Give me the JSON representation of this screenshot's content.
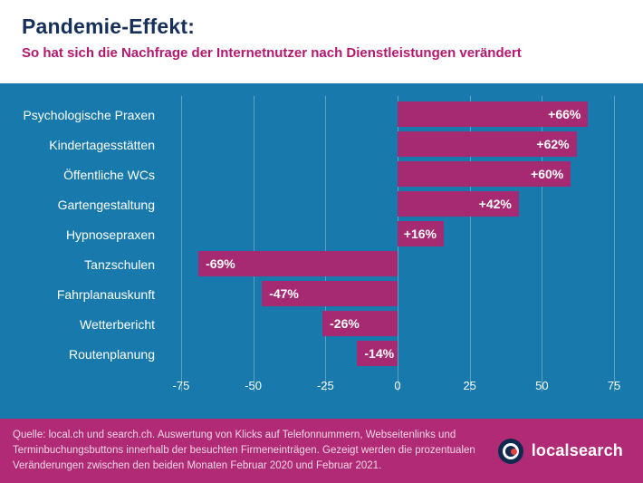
{
  "header": {
    "title": "Pandemie-Effekt:",
    "subtitle": "So hat sich die Nachfrage der Internetnutzer nach Dienstleistungen verändert"
  },
  "chart_data": {
    "type": "bar",
    "orientation": "horizontal",
    "categories": [
      "Psychologische Praxen",
      "Kindertagesstätten",
      "Öffentliche WCs",
      "Gartengestaltung",
      "Hypnosepraxen",
      "Tanzschulen",
      "Fahrplanauskunft",
      "Wetterbericht",
      "Routenplanung"
    ],
    "values": [
      66,
      62,
      60,
      42,
      16,
      -69,
      -47,
      -26,
      -14
    ],
    "value_labels": [
      "+66%",
      "+62%",
      "+60%",
      "+42%",
      "+16%",
      "-69%",
      "-47%",
      "-26%",
      "-14%"
    ],
    "x_ticks": [
      -75,
      -50,
      -25,
      0,
      25,
      50,
      75
    ],
    "xlim": [
      -80,
      80
    ],
    "grid": true,
    "legend": false,
    "title": "Pandemie-Effekt: So hat sich die Nachfrage der Internetnutzer nach Dienstleistungen verändert",
    "xlabel": "",
    "ylabel": ""
  },
  "footer": {
    "source_text": "Quelle: local.ch und search.ch. Auswertung von Klicks auf Telefonnummern, Webseitenlinks und Terminbuchungsbuttons innerhalb der besuchten Firmeneinträgen. Gezeigt werden die prozentualen Veränderungen zwischen den beiden Monaten Februar 2020 und Februar 2021.",
    "logo_text": "localsearch"
  },
  "colors": {
    "background_blue": "#1779ac",
    "bar_magenta": "#a62a72",
    "footer_magenta": "#b12a76",
    "title_navy": "#16305a",
    "subtitle_magenta": "#b4176e",
    "footer_text": "#f2d6e6",
    "logo_navy": "#12294f",
    "logo_red": "#e8423c"
  }
}
